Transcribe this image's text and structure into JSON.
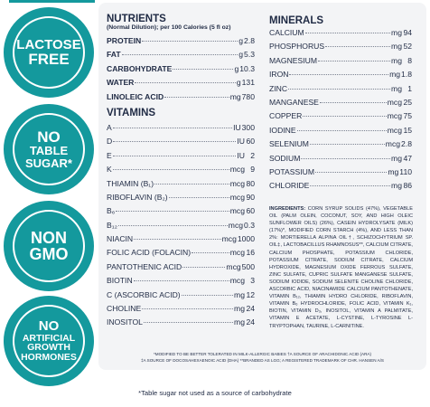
{
  "badges": [
    {
      "lines": [
        "LACTOSE",
        "FREE"
      ]
    },
    {
      "lines": [
        "NO",
        "TABLE",
        "SUGAR*"
      ]
    },
    {
      "lines": [
        "NON",
        "GMO"
      ]
    },
    {
      "lines": [
        "NO",
        "ARTIFICIAL",
        "GROWTH",
        "HORMONES"
      ]
    }
  ],
  "colors": {
    "teal": "#14999d",
    "navy": "#1f2a44",
    "panel": "#f3f4f6"
  },
  "nutrients": {
    "title": "NUTRIENTS",
    "subtitle": "(Normal Dilution); per 100 Calories (5 fl oz)",
    "rows": [
      {
        "label": "PROTEIN",
        "unit": "g",
        "value": "2.8"
      },
      {
        "label": "FAT",
        "unit": "g",
        "value": "5.3"
      },
      {
        "label": "CARBOHYDRATE",
        "unit": "g",
        "value": "10.3"
      },
      {
        "label": "WATER",
        "unit": "g",
        "value": "131"
      },
      {
        "label": "LINOLEIC ACID",
        "unit": "mg",
        "value": "780"
      }
    ]
  },
  "vitamins": {
    "title": "VITAMINS",
    "rows": [
      {
        "label": "A",
        "unit": "IU",
        "value": "300"
      },
      {
        "label": "D",
        "unit": "IU",
        "value": "60"
      },
      {
        "label": "E",
        "unit": "IU",
        "value": "2"
      },
      {
        "label": "K",
        "unit": "mcg",
        "value": "9"
      },
      {
        "label": "THIAMIN (B₁)",
        "unit": "mcg",
        "value": "80"
      },
      {
        "label": "RIBOFLAVIN (B₂)",
        "unit": "mcg",
        "value": "90"
      },
      {
        "label": "B₆",
        "unit": "mcg",
        "value": "60"
      },
      {
        "label": "B₁₂",
        "unit": "mcg",
        "value": "0.3"
      },
      {
        "label": "NIACIN",
        "unit": "mcg",
        "value": "1000"
      },
      {
        "label": "FOLIC ACID (FOLACIN)",
        "unit": "mcg",
        "value": "16"
      },
      {
        "label": "PANTOTHENIC ACID",
        "unit": "mcg",
        "value": "500"
      },
      {
        "label": "BIOTIN",
        "unit": "mcg",
        "value": "3"
      },
      {
        "label": "C (ASCORBIC ACID)",
        "unit": "mg",
        "value": "12"
      },
      {
        "label": "CHOLINE",
        "unit": "mg",
        "value": "24"
      },
      {
        "label": "INOSITOL",
        "unit": "mg",
        "value": "24"
      }
    ]
  },
  "minerals": {
    "title": "MINERALS",
    "rows": [
      {
        "label": "CALCIUM",
        "unit": "mg",
        "value": "94"
      },
      {
        "label": "PHOSPHORUS",
        "unit": "mg",
        "value": "52"
      },
      {
        "label": "MAGNESIUM",
        "unit": "mg",
        "value": "8"
      },
      {
        "label": "IRON",
        "unit": "mg",
        "value": "1.8"
      },
      {
        "label": "ZINC",
        "unit": "mg",
        "value": "1"
      },
      {
        "label": "MANGANESE",
        "unit": "mcg",
        "value": "25"
      },
      {
        "label": "COPPER",
        "unit": "mcg",
        "value": "75"
      },
      {
        "label": "IODINE",
        "unit": "mcg",
        "value": "15"
      },
      {
        "label": "SELENIUM",
        "unit": "mcg",
        "value": "2.8"
      },
      {
        "label": "SODIUM",
        "unit": "mg",
        "value": "47"
      },
      {
        "label": "POTASSIUM",
        "unit": "mg",
        "value": "110"
      },
      {
        "label": "CHLORIDE",
        "unit": "mg",
        "value": "86"
      }
    ]
  },
  "ingredients": {
    "heading": "INGREDIENTS:",
    "text": "CORN SYRUP SOLIDS (47%), VEGETABLE OIL (PALM OLEIN, COCONUT, SOY, AND HIGH OLEIC SUNFLOWER OILS) (26%), CASEIN HYDROLYSATE (MILK) (17%)*, MODIFIED CORN STARCH (4%), AND LESS THAN 2%: MORTIERELLA ALPINA OIL†, SCHIZOCHYTRIUM SP. OIL‡, LACTOBACILLUS RHAMNOSUS**, CALCIUM CITRATE, CALCIUM PHOSPHATE, POTASSIUM CHLORIDE, POTASSIUM CITRATE, SODIUM CITRATE, CALCIUM HYDROXIDE, MAGNESIUM OXIDE FERROUS SULFATE, ZINC SULFATE, CUPRIC SULFATE MANGANESE SULFATE, SODIUM IODIDE, SODIUM SELENITE CHOLINE CHLORIDE, ASCORBIC ACID, NIACINAMIDE CALCIUM PANTOTHENATE, VITAMIN B₁₂, THIAMIN HYDRO CHLORIDE, RIBOFLAVIN, VITAMIN B₆ HYDROCHLORIDE, FOLIC ACID, VITAMIN K₁, BIOTIN, VITAMIN D₃, INOSITOL, VITAMIN A PALMITATE, VITAMIN E ACETATE, L-CYSTINE, L-TYROSINE L-TRYPTOPHAN, TAURINE, L-CARNITINE."
  },
  "footnotes": {
    "line1": "*MODIFIED TO BE BETTER TOLERATED IN MILK-ALLERGIC BABIES †A SOURCE OF ARACHIDONIC ACID (ARA)",
    "line2": "‡A SOURCE OF DOCOSAHEXAENOIC ACID (DHA) **BRANDED AS LGG; A REGISTERED TRADEMARK OF CHR. HANSEN A/S"
  },
  "bottom_note": "*Table sugar not used as a source of carbohydrate"
}
